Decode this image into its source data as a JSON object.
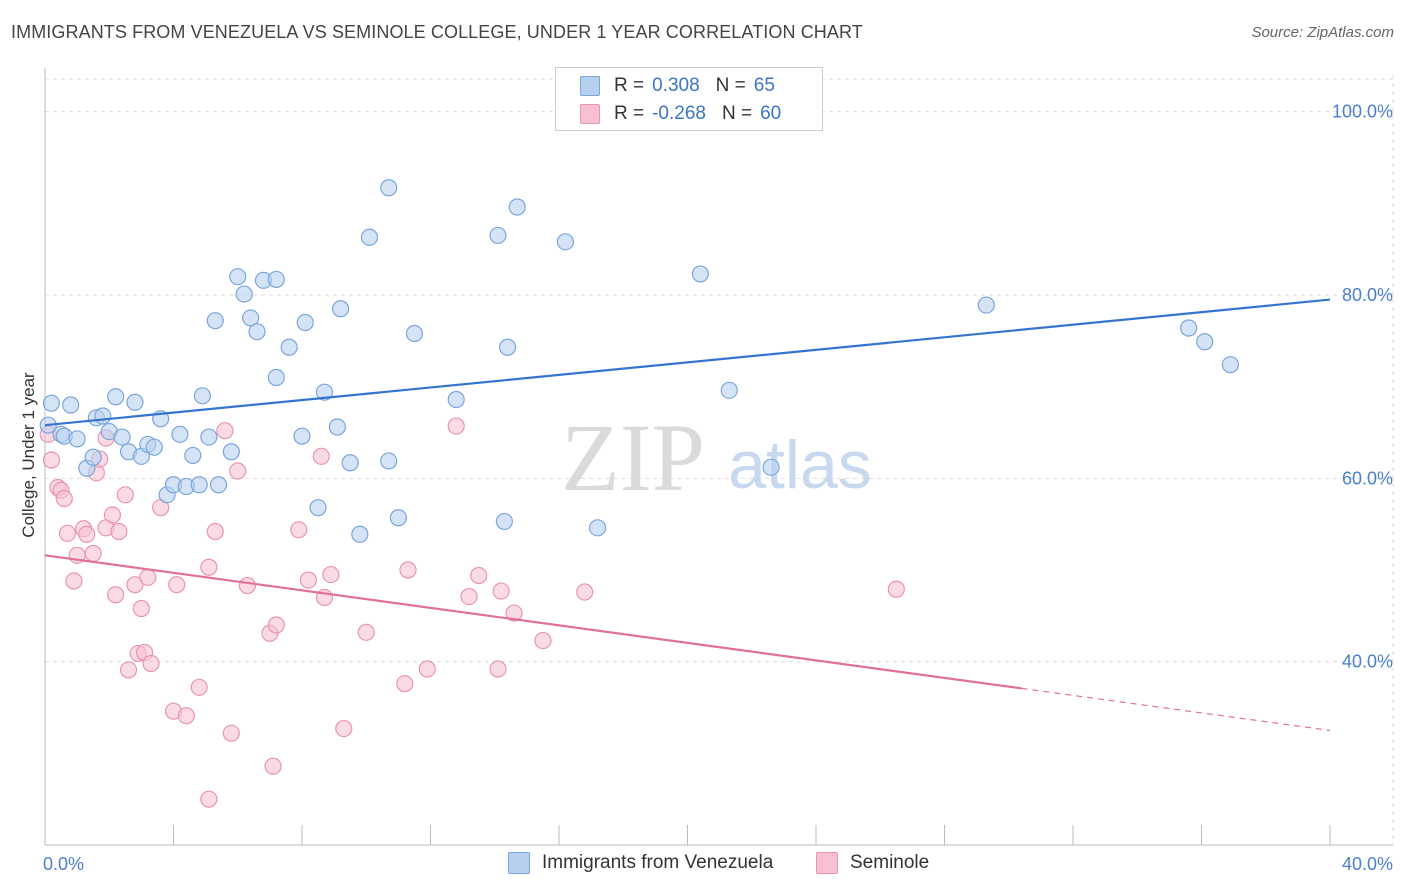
{
  "title": "IMMIGRANTS FROM VENEZUELA VS SEMINOLE COLLEGE, UNDER 1 YEAR CORRELATION CHART",
  "source": "Source: ZipAtlas.com",
  "watermark": {
    "zip": "ZIP",
    "atlas": "atlas"
  },
  "legend": {
    "rows": [
      {
        "r_label": "R =",
        "r_value": "0.308",
        "n_label": "N =",
        "n_value": "65"
      },
      {
        "r_label": "R =",
        "r_value": "-0.268",
        "n_label": "N =",
        "n_value": "60"
      }
    ]
  },
  "colors": {
    "blue_fill": "#b8d0f0",
    "blue_stroke": "#7aa6dd",
    "blue_line": "#3474d0",
    "pink_fill": "#f7c1d2",
    "pink_stroke": "#e995b1",
    "pink_line": "#e0709a",
    "grid": "#dddddd",
    "tick_text": "#4a7fd0"
  },
  "chart_data": {
    "type": "scatter",
    "title": "IMMIGRANTS FROM VENEZUELA VS SEMINOLE COLLEGE, UNDER 1 YEAR CORRELATION CHART",
    "xlabel": "",
    "ylabel": "College, Under 1 year",
    "xlim": [
      0,
      40
    ],
    "ylim": [
      20,
      104
    ],
    "x_ticks": [
      "0.0%",
      "40.0%"
    ],
    "y_ticks": [
      {
        "value": 40,
        "label": "40.0%"
      },
      {
        "value": 60,
        "label": "60.0%"
      },
      {
        "value": 80,
        "label": "80.0%"
      },
      {
        "value": 100,
        "label": "100.0%"
      }
    ],
    "grid": true,
    "legend_position": "top-center",
    "series": [
      {
        "name": "Immigrants from Venezuela",
        "R": 0.308,
        "N": 65,
        "trend": {
          "x": [
            0,
            40
          ],
          "y": [
            65.8,
            79.5
          ],
          "dashed_from": null
        },
        "points": [
          [
            0.1,
            65.8
          ],
          [
            0.2,
            68.2
          ],
          [
            0.5,
            64.8
          ],
          [
            0.6,
            64.6
          ],
          [
            0.8,
            68.0
          ],
          [
            1.0,
            64.3
          ],
          [
            1.3,
            61.1
          ],
          [
            1.5,
            62.3
          ],
          [
            1.6,
            66.6
          ],
          [
            1.8,
            66.8
          ],
          [
            2.0,
            65.1
          ],
          [
            2.2,
            68.9
          ],
          [
            2.4,
            64.5
          ],
          [
            2.6,
            62.9
          ],
          [
            2.8,
            68.3
          ],
          [
            3.0,
            62.4
          ],
          [
            3.2,
            63.7
          ],
          [
            3.4,
            63.4
          ],
          [
            3.6,
            66.5
          ],
          [
            3.8,
            58.2
          ],
          [
            4.0,
            59.3
          ],
          [
            4.2,
            64.8
          ],
          [
            4.4,
            59.1
          ],
          [
            4.6,
            62.5
          ],
          [
            4.8,
            59.3
          ],
          [
            4.9,
            69.0
          ],
          [
            5.1,
            64.5
          ],
          [
            5.3,
            77.2
          ],
          [
            5.4,
            59.3
          ],
          [
            5.8,
            62.9
          ],
          [
            6.0,
            82.0
          ],
          [
            6.2,
            80.1
          ],
          [
            6.4,
            77.5
          ],
          [
            6.6,
            76.0
          ],
          [
            6.8,
            81.6
          ],
          [
            7.2,
            81.7
          ],
          [
            7.6,
            74.3
          ],
          [
            7.2,
            71.0
          ],
          [
            8.1,
            77.0
          ],
          [
            8.0,
            64.6
          ],
          [
            8.7,
            69.4
          ],
          [
            8.5,
            56.8
          ],
          [
            9.1,
            65.6
          ],
          [
            9.2,
            78.5
          ],
          [
            9.5,
            61.7
          ],
          [
            9.8,
            53.9
          ],
          [
            10.1,
            86.3
          ],
          [
            10.7,
            91.7
          ],
          [
            10.7,
            61.9
          ],
          [
            11.0,
            55.7
          ],
          [
            11.5,
            75.8
          ],
          [
            12.8,
            68.6
          ],
          [
            14.1,
            86.5
          ],
          [
            14.7,
            89.6
          ],
          [
            14.4,
            74.3
          ],
          [
            14.3,
            55.3
          ],
          [
            16.2,
            85.8
          ],
          [
            17.2,
            54.6
          ],
          [
            20.4,
            82.3
          ],
          [
            21.3,
            69.6
          ],
          [
            22.6,
            61.2
          ],
          [
            29.3,
            78.9
          ],
          [
            35.6,
            76.4
          ],
          [
            36.1,
            74.9
          ],
          [
            36.9,
            72.4
          ]
        ]
      },
      {
        "name": "Seminole",
        "R": -0.268,
        "N": 60,
        "trend": {
          "x": [
            0,
            40
          ],
          "y": [
            51.6,
            32.5
          ],
          "dashed_from": 30.4
        },
        "points": [
          [
            0.1,
            64.8
          ],
          [
            0.2,
            62.0
          ],
          [
            0.4,
            59.0
          ],
          [
            0.5,
            58.7
          ],
          [
            0.6,
            57.8
          ],
          [
            0.7,
            54.0
          ],
          [
            0.9,
            48.8
          ],
          [
            1.0,
            51.6
          ],
          [
            1.2,
            54.5
          ],
          [
            1.3,
            53.9
          ],
          [
            1.5,
            51.8
          ],
          [
            1.6,
            60.6
          ],
          [
            1.7,
            62.1
          ],
          [
            1.9,
            54.6
          ],
          [
            1.9,
            64.4
          ],
          [
            2.1,
            56.0
          ],
          [
            2.2,
            47.3
          ],
          [
            2.3,
            54.2
          ],
          [
            2.5,
            58.2
          ],
          [
            2.6,
            39.1
          ],
          [
            2.8,
            48.4
          ],
          [
            2.9,
            40.9
          ],
          [
            3.0,
            45.8
          ],
          [
            3.1,
            41.0
          ],
          [
            3.2,
            49.2
          ],
          [
            3.3,
            39.8
          ],
          [
            3.6,
            56.8
          ],
          [
            4.0,
            34.6
          ],
          [
            4.1,
            48.4
          ],
          [
            4.4,
            34.1
          ],
          [
            4.8,
            37.2
          ],
          [
            5.1,
            50.3
          ],
          [
            5.1,
            25.0
          ],
          [
            5.3,
            54.2
          ],
          [
            5.6,
            65.2
          ],
          [
            5.8,
            32.2
          ],
          [
            6.0,
            60.8
          ],
          [
            6.3,
            48.3
          ],
          [
            7.0,
            43.1
          ],
          [
            7.1,
            28.6
          ],
          [
            7.2,
            44.0
          ],
          [
            7.9,
            54.4
          ],
          [
            8.2,
            48.9
          ],
          [
            8.6,
            62.4
          ],
          [
            8.7,
            47.0
          ],
          [
            8.9,
            49.5
          ],
          [
            9.3,
            32.7
          ],
          [
            10.0,
            43.2
          ],
          [
            11.2,
            37.6
          ],
          [
            11.3,
            50.0
          ],
          [
            11.9,
            39.2
          ],
          [
            12.8,
            65.7
          ],
          [
            13.2,
            47.1
          ],
          [
            13.5,
            49.4
          ],
          [
            14.1,
            39.2
          ],
          [
            14.2,
            47.7
          ],
          [
            14.6,
            45.3
          ],
          [
            15.5,
            42.3
          ],
          [
            16.8,
            47.6
          ],
          [
            26.5,
            47.9
          ]
        ]
      }
    ]
  },
  "bottom_legend": [
    "Immigrants from Venezuela",
    "Seminole"
  ]
}
